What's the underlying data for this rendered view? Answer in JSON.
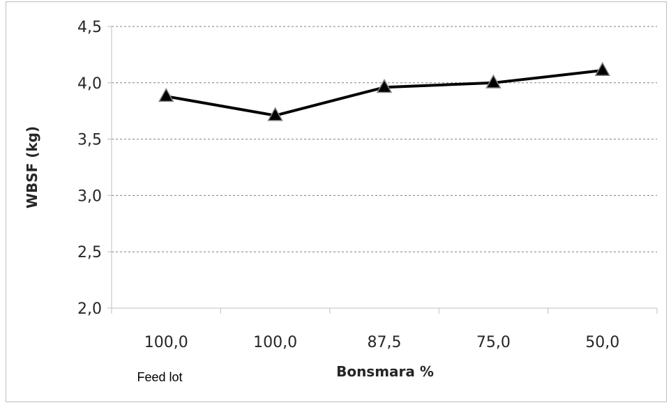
{
  "chart_data": {
    "type": "line",
    "title": "",
    "xlabel": "Bonsmara %",
    "ylabel": "WBSF (kg)",
    "categories": [
      "100,0",
      "100,0",
      "87,5",
      "75,0",
      "50,0"
    ],
    "category_note": "Feed lot",
    "series": [
      {
        "values": [
          3.88,
          3.71,
          3.96,
          4.0,
          4.11
        ],
        "marker": "triangle"
      }
    ],
    "ylim": [
      2.0,
      4.5
    ],
    "yticks": [
      "2,0",
      "2,5",
      "3,0",
      "3,5",
      "4,0",
      "4,5"
    ],
    "grid": true,
    "grid_style": "dashed",
    "legend": "none",
    "colors": {
      "line": "#000000",
      "marker": "#000000",
      "grid": "#7f7f7f",
      "axis": "#bfbfbf"
    }
  }
}
